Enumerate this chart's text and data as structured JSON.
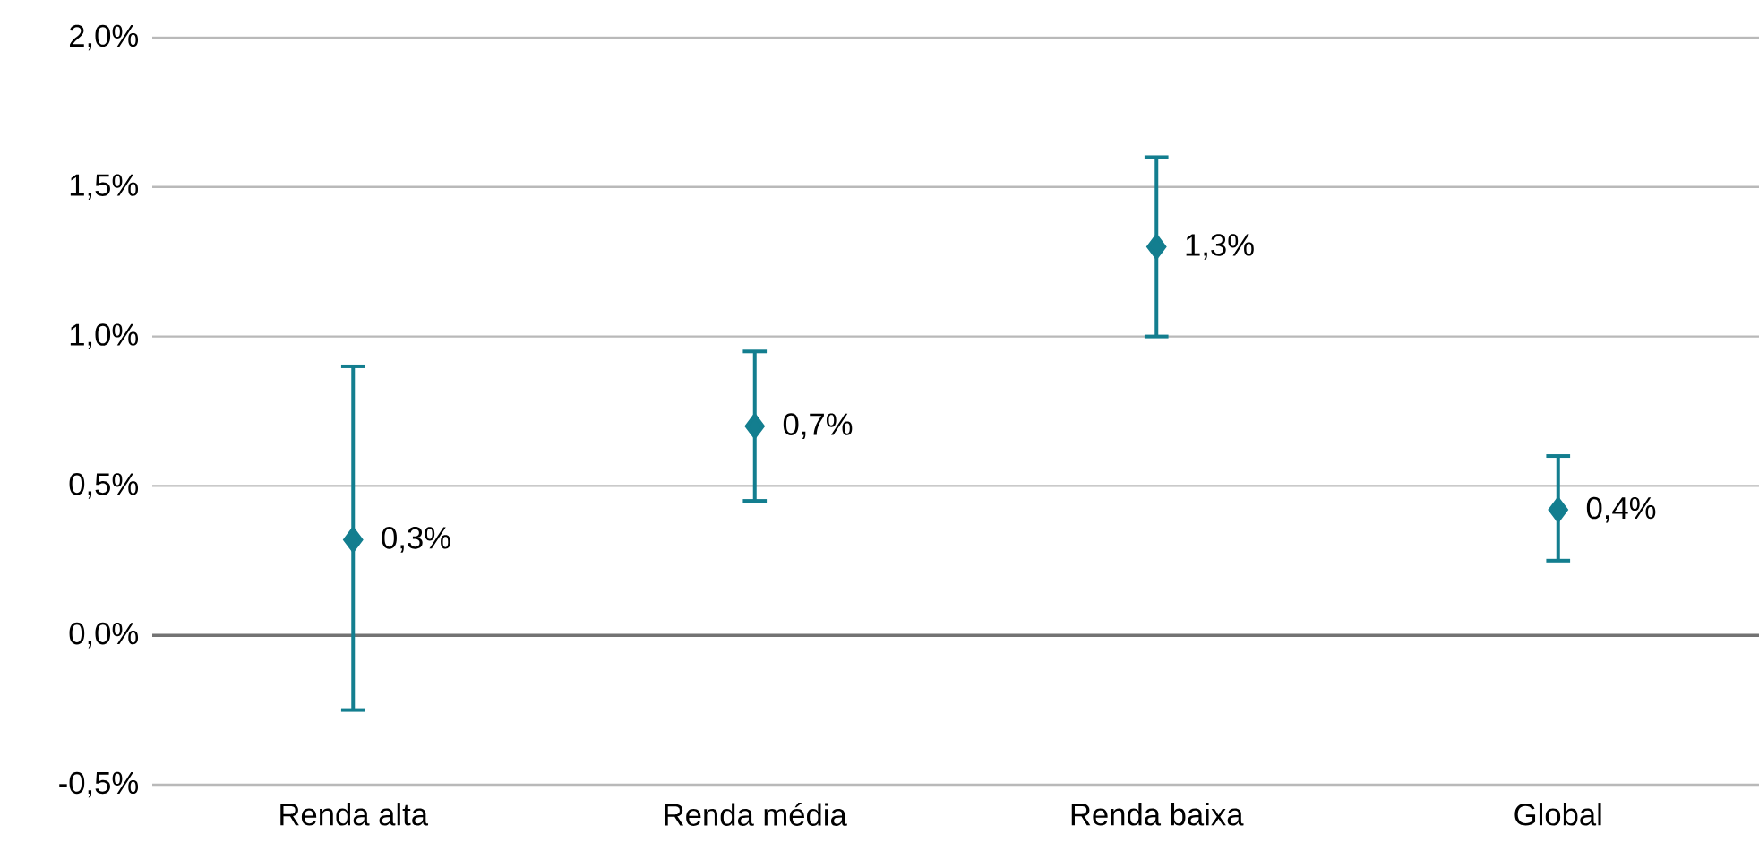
{
  "chart_data": {
    "type": "scatter",
    "categories": [
      "Renda alta",
      "Renda média",
      "Renda baixa",
      "Global"
    ],
    "values": [
      0.32,
      0.7,
      1.3,
      0.42
    ],
    "errors": [
      [
        -0.25,
        0.9
      ],
      [
        0.45,
        0.95
      ],
      [
        1.0,
        1.6
      ],
      [
        0.25,
        0.6
      ]
    ],
    "value_labels": [
      "0,3%",
      "0,7%",
      "1,3%",
      "0,4%"
    ],
    "color": "#137e8f",
    "marker": "diamond",
    "grid": "y",
    "ylim": [
      -0.5,
      2.0
    ],
    "yticks": [
      {
        "value": -0.5,
        "label": "-0,5%"
      },
      {
        "value": 0,
        "label": "0,0%"
      },
      {
        "value": 0.5,
        "label": "0,5%"
      },
      {
        "value": 1.0,
        "label": "1,0%"
      },
      {
        "value": 1.5,
        "label": "1,5%"
      },
      {
        "value": 2.0,
        "label": "2,0%"
      }
    ]
  }
}
